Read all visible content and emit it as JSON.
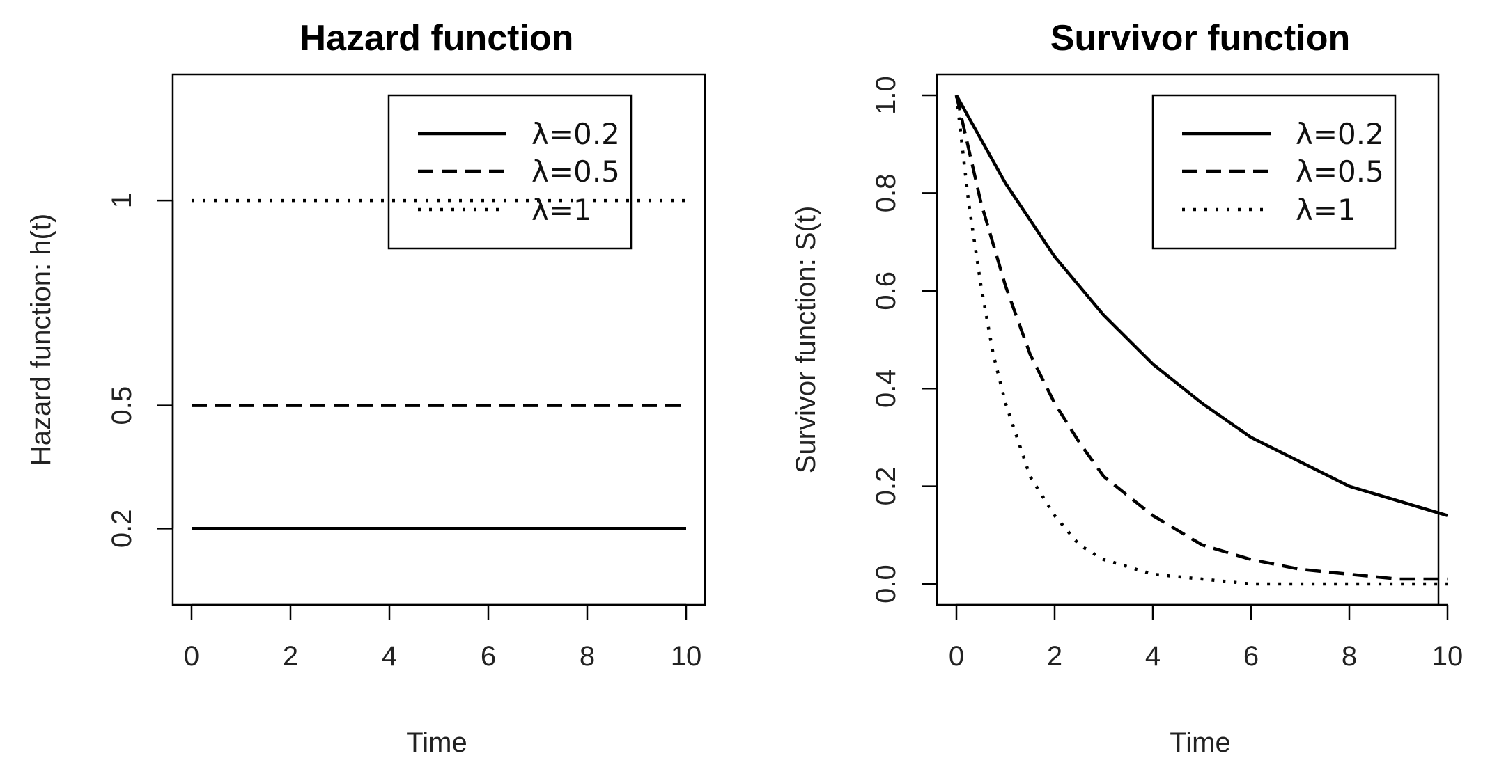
{
  "chart_data": [
    {
      "type": "line",
      "title": "Hazard function",
      "xlabel": "Time",
      "ylabel": "Hazard function: h(t)",
      "xlim": [
        0,
        10
      ],
      "ylim": [
        0.08,
        1.26
      ],
      "x_ticks": [
        "0",
        "2",
        "4",
        "6",
        "8",
        "10"
      ],
      "y_ticks": [
        "0.2",
        "0.5",
        "1"
      ],
      "legend_position": "top-right",
      "grid": false,
      "series": [
        {
          "name": "λ=0.2",
          "line_style": "solid",
          "x": [
            0,
            10
          ],
          "y": [
            0.2,
            0.2
          ]
        },
        {
          "name": "λ=0.5",
          "line_style": "dashed",
          "x": [
            0,
            10
          ],
          "y": [
            0.5,
            0.5
          ]
        },
        {
          "name": "λ=1",
          "line_style": "dotted",
          "x": [
            0,
            10
          ],
          "y": [
            1,
            1
          ]
        }
      ]
    },
    {
      "type": "line",
      "title": "Survivor function",
      "xlabel": "Time",
      "ylabel": "Survivor function: S(t)",
      "xlim": [
        0,
        10
      ],
      "ylim": [
        0,
        1
      ],
      "x_ticks": [
        "0",
        "2",
        "4",
        "6",
        "8",
        "10"
      ],
      "y_ticks": [
        "0.0",
        "0.2",
        "0.4",
        "0.6",
        "0.8",
        "1.0"
      ],
      "legend_position": "top-right",
      "grid": false,
      "series": [
        {
          "name": "λ=0.2",
          "line_style": "solid",
          "x": [
            0,
            1,
            2,
            3,
            4,
            5,
            6,
            7,
            8,
            9,
            10
          ],
          "y": [
            1.0,
            0.82,
            0.67,
            0.55,
            0.45,
            0.37,
            0.3,
            0.25,
            0.2,
            0.17,
            0.14
          ]
        },
        {
          "name": "λ=0.5",
          "line_style": "dashed",
          "x": [
            0,
            0.5,
            1,
            1.5,
            2,
            2.5,
            3,
            4,
            5,
            6,
            7,
            8,
            9,
            10
          ],
          "y": [
            1.0,
            0.78,
            0.61,
            0.47,
            0.37,
            0.29,
            0.22,
            0.14,
            0.08,
            0.05,
            0.03,
            0.02,
            0.01,
            0.01
          ]
        },
        {
          "name": "λ=1",
          "line_style": "dotted",
          "x": [
            0,
            0.25,
            0.5,
            0.75,
            1,
            1.5,
            2,
            2.5,
            3,
            4,
            5,
            6,
            7,
            8,
            9,
            10
          ],
          "y": [
            1.0,
            0.78,
            0.61,
            0.47,
            0.37,
            0.22,
            0.14,
            0.08,
            0.05,
            0.02,
            0.01,
            0.0,
            0.0,
            0.0,
            0.0,
            0.0
          ]
        }
      ]
    }
  ]
}
